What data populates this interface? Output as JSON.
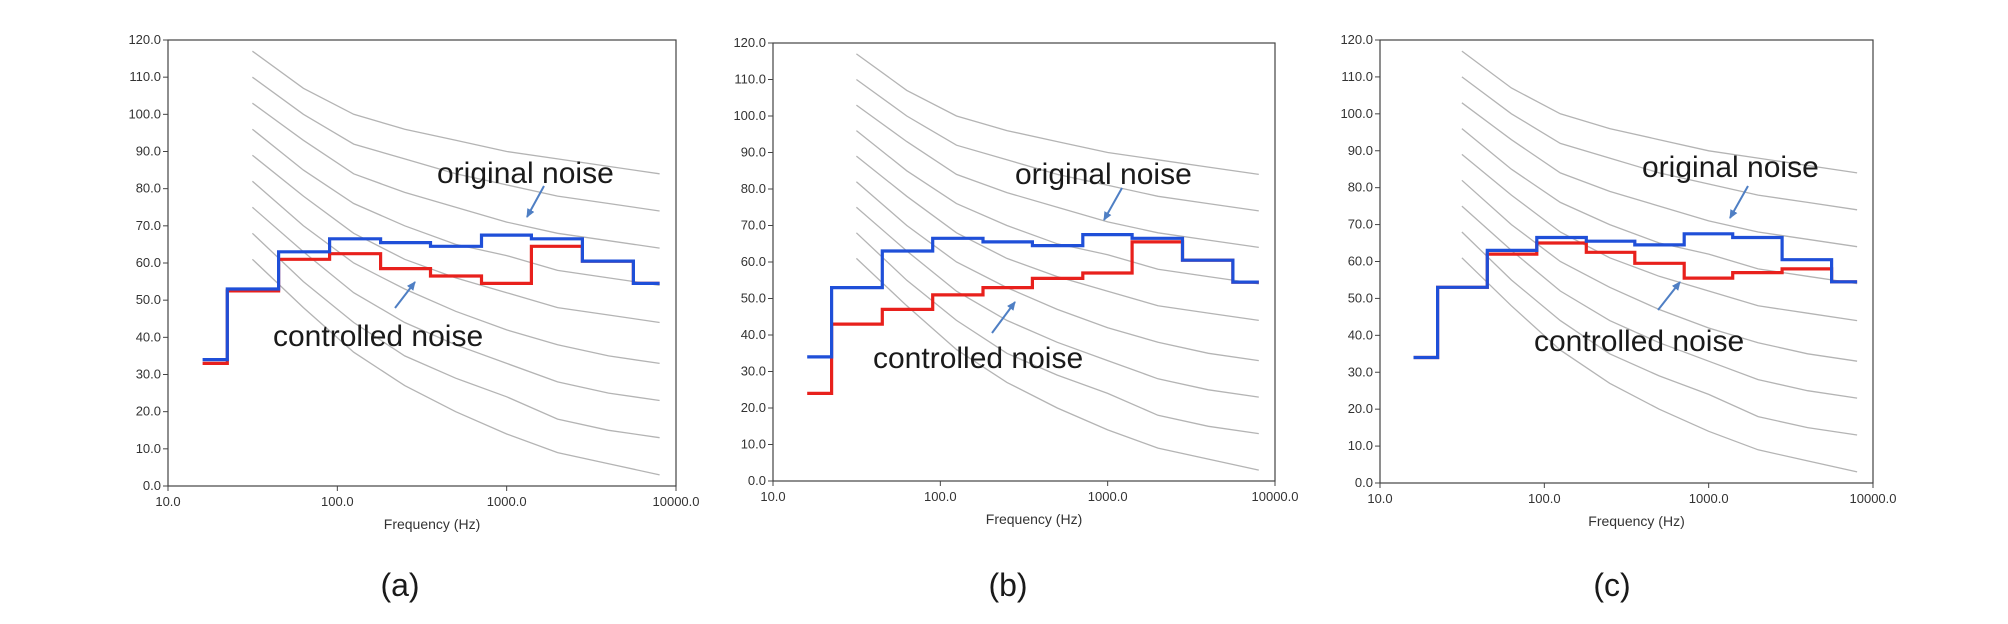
{
  "colors": {
    "original": "#1f4fd8",
    "controlled": "#e8201c",
    "reference_curves": "#b4b4b4",
    "arrow": "#4f7fc4",
    "frame": "#444444"
  },
  "chart_data": [
    {
      "panel_label": "(a)",
      "type": "line",
      "step": true,
      "xscale": "log",
      "xlabel": "Frequency (Hz)",
      "ylabel": "",
      "xlim": [
        10.0,
        10000.0
      ],
      "ylim": [
        0.0,
        120.0
      ],
      "x_ticks": [
        "10.0",
        "100.0",
        "1000.0",
        "10000.0"
      ],
      "y_ticks": [
        "0.0",
        "10.0",
        "20.0",
        "30.0",
        "40.0",
        "50.0",
        "60.0",
        "70.0",
        "80.0",
        "90.0",
        "100.0",
        "110.0",
        "120.0"
      ],
      "grid": false,
      "band_edges_hz": [
        16,
        22.4,
        45,
        90,
        180,
        355,
        710,
        1400,
        2800,
        5600,
        8000
      ],
      "series": [
        {
          "name": "original noise",
          "values": [
            34,
            53,
            63,
            66.5,
            65.5,
            64.5,
            67.5,
            66.5,
            60.5,
            54.5
          ]
        },
        {
          "name": "controlled noise",
          "values": [
            33,
            52.5,
            61,
            62.5,
            58.5,
            56.5,
            54.5,
            64.5,
            60.5,
            54.5
          ]
        }
      ],
      "annotations": [
        "original noise",
        "controlled noise"
      ]
    },
    {
      "panel_label": "(b)",
      "type": "line",
      "step": true,
      "xscale": "log",
      "xlabel": "Frequency (Hz)",
      "ylabel": "",
      "xlim": [
        10.0,
        10000.0
      ],
      "ylim": [
        0.0,
        120.0
      ],
      "x_ticks": [
        "10.0",
        "100.0",
        "1000.0",
        "10000.0"
      ],
      "y_ticks": [
        "0.0",
        "10.0",
        "20.0",
        "30.0",
        "40.0",
        "50.0",
        "60.0",
        "70.0",
        "80.0",
        "90.0",
        "100.0",
        "110.0",
        "120.0"
      ],
      "grid": false,
      "band_edges_hz": [
        16,
        22.4,
        45,
        90,
        180,
        355,
        710,
        1400,
        2800,
        5600,
        8000
      ],
      "series": [
        {
          "name": "original noise",
          "values": [
            34,
            53,
            63,
            66.5,
            65.5,
            64.5,
            67.5,
            66.5,
            60.5,
            54.5
          ]
        },
        {
          "name": "controlled noise",
          "values": [
            24,
            43,
            47,
            51,
            53,
            55.5,
            57,
            65.5,
            60.5,
            54.5
          ]
        }
      ],
      "annotations": [
        "original noise",
        "controlled noise"
      ]
    },
    {
      "panel_label": "(c)",
      "type": "line",
      "step": true,
      "xscale": "log",
      "xlabel": "Frequency (Hz)",
      "ylabel": "",
      "xlim": [
        10.0,
        10000.0
      ],
      "ylim": [
        0.0,
        120.0
      ],
      "x_ticks": [
        "10.0",
        "100.0",
        "1000.0",
        "10000.0"
      ],
      "y_ticks": [
        "0.0",
        "10.0",
        "20.0",
        "30.0",
        "40.0",
        "50.0",
        "60.0",
        "70.0",
        "80.0",
        "90.0",
        "100.0",
        "110.0",
        "120.0"
      ],
      "grid": false,
      "band_edges_hz": [
        16,
        22.4,
        45,
        90,
        180,
        355,
        710,
        1400,
        2800,
        5600,
        8000
      ],
      "series": [
        {
          "name": "original noise",
          "values": [
            34,
            53,
            63,
            66.5,
            65.5,
            64.5,
            67.5,
            66.5,
            60.5,
            54.5
          ]
        },
        {
          "name": "controlled noise",
          "values": [
            34,
            53,
            62,
            65,
            62.5,
            59.5,
            55.5,
            57,
            58,
            54.5
          ]
        }
      ],
      "annotations": [
        "original noise",
        "controlled noise"
      ]
    }
  ],
  "reference_curves": {
    "description_free_note": null,
    "x_hz": [
      31.5,
      63,
      125,
      250,
      500,
      1000,
      2000,
      4000,
      8000
    ],
    "curves": [
      [
        117,
        107,
        100,
        96,
        93,
        90,
        88,
        86,
        84
      ],
      [
        110,
        100,
        92,
        88,
        84,
        81,
        78,
        76,
        74
      ],
      [
        103,
        93,
        84,
        79,
        75,
        71,
        68,
        66,
        64
      ],
      [
        96,
        85,
        76,
        70,
        65,
        62,
        58,
        56,
        54
      ],
      [
        89,
        78,
        68,
        61,
        56,
        52,
        48,
        46,
        44
      ],
      [
        82,
        70,
        60,
        53,
        47,
        42,
        38,
        35,
        33
      ],
      [
        75,
        63,
        52,
        44,
        38,
        33,
        28,
        25,
        23
      ],
      [
        68,
        55,
        44,
        35,
        29,
        24,
        18,
        15,
        13
      ],
      [
        61,
        48,
        36,
        27,
        20,
        14,
        9,
        6,
        3
      ]
    ]
  }
}
